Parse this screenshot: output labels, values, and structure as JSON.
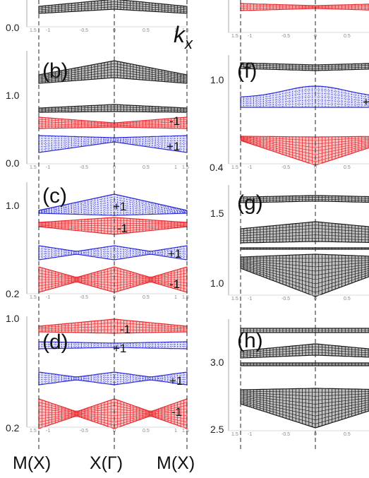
{
  "colors": {
    "black": "#1a1a1a",
    "red": "#e8262a",
    "blue": "#2a2ad8"
  },
  "mini_ticks": [
    "1.5",
    "-1",
    "-0.5",
    "0",
    "0.5",
    "1",
    "1.5"
  ],
  "kx_label": {
    "k": "k",
    "sub": "x"
  },
  "bottom_labels": [
    "M(X)",
    "X(Γ)",
    "M(X)"
  ],
  "panels": [
    {
      "id": "top-left-remnant",
      "label": "",
      "yticks": [
        {
          "text": "0.0",
          "pos": "bottom"
        }
      ],
      "annotations": []
    },
    {
      "id": "b",
      "label": "(b)",
      "yticks": [
        {
          "text": "1.0",
          "pos": "upper"
        },
        {
          "text": "0.0",
          "pos": "bottom"
        }
      ],
      "annotations": [
        "-1",
        "+1"
      ]
    },
    {
      "id": "c",
      "label": "(c)",
      "yticks": [
        {
          "text": "1.0",
          "pos": "upper"
        },
        {
          "text": "0.2",
          "pos": "bottom"
        }
      ],
      "annotations": [
        "+1",
        "-1",
        "+1",
        "-1"
      ]
    },
    {
      "id": "d",
      "label": "(d)",
      "yticks": [
        {
          "text": "1.0",
          "pos": "top"
        },
        {
          "text": "0.2",
          "pos": "bottom"
        }
      ],
      "annotations": [
        "-1",
        "+1",
        "+1",
        "-1"
      ]
    },
    {
      "id": "top-right-remnant",
      "label": "",
      "yticks": [],
      "annotations": []
    },
    {
      "id": "f",
      "label": "(f)",
      "yticks": [
        {
          "text": "1.0",
          "pos": "upper"
        },
        {
          "text": "0.4",
          "pos": "bottom"
        }
      ],
      "annotations": [
        "+"
      ]
    },
    {
      "id": "g",
      "label": "(g)",
      "yticks": [
        {
          "text": "1.5",
          "pos": "upper"
        },
        {
          "text": "1.0",
          "pos": "bottom"
        }
      ],
      "annotations": []
    },
    {
      "id": "h",
      "label": "(h)",
      "yticks": [
        {
          "text": "3.0",
          "pos": "upper"
        },
        {
          "text": "2.5",
          "pos": "bottom"
        }
      ],
      "annotations": []
    }
  ]
}
